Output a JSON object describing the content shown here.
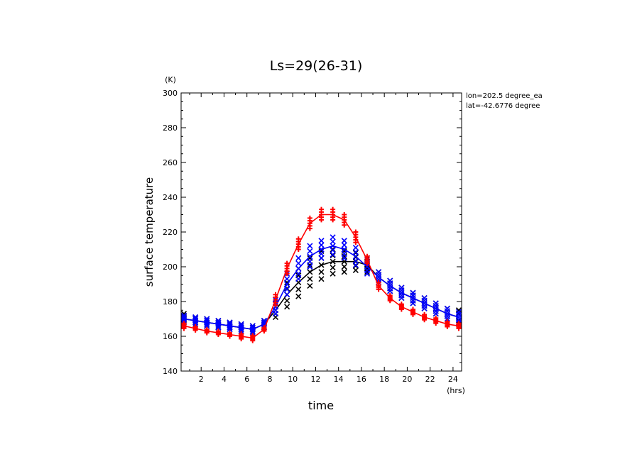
{
  "chart_data": {
    "type": "line",
    "title": "Ls=29(26-31)",
    "xlabel": "time",
    "ylabel": "surface temperature",
    "x_unit": "(hrs)",
    "y_unit": "(K)",
    "annotations": [
      "lon=202.5 degree_ea",
      "lat=-42.6776 degree"
    ],
    "xlim": [
      0.25,
      24.75
    ],
    "ylim": [
      140,
      300
    ],
    "x_ticks": [
      2,
      4,
      6,
      8,
      10,
      12,
      14,
      16,
      18,
      20,
      22,
      24
    ],
    "y_ticks": [
      140,
      160,
      180,
      200,
      220,
      240,
      260,
      280,
      300
    ],
    "x": [
      0.5,
      1.5,
      2.5,
      3.5,
      4.5,
      5.5,
      6.5,
      7.5,
      8.5,
      9.5,
      10.5,
      11.5,
      12.5,
      13.5,
      14.5,
      15.5,
      16.5,
      17.5,
      18.5,
      19.5,
      20.5,
      21.5,
      22.5,
      23.5,
      24.5
    ],
    "series": [
      {
        "color": "#ff0000",
        "marker": "plus",
        "values": [
          166,
          164.5,
          163,
          162,
          161,
          160,
          159,
          164,
          181,
          199,
          213,
          225,
          230,
          230,
          227,
          217,
          204,
          189,
          182,
          177,
          174,
          171,
          169,
          167,
          166
        ],
        "scatter_spread": [
          1.5,
          1,
          1,
          1,
          1,
          1.5,
          1.5,
          1,
          3,
          3,
          3,
          3,
          3,
          3,
          3,
          3,
          2,
          2,
          1.5,
          1.5,
          1.5,
          1.5,
          1.5,
          1.5,
          1.5
        ]
      },
      {
        "color": "#0000ff",
        "marker": "cross",
        "values": [
          170,
          169,
          168,
          167,
          166,
          165,
          164,
          167,
          177,
          190,
          199,
          206,
          210,
          212,
          210,
          206,
          200,
          194,
          189,
          185,
          182,
          179,
          176,
          173,
          171
        ],
        "scatter_spread": [
          2,
          2,
          2,
          2,
          2,
          2,
          2,
          2,
          4,
          6,
          6,
          6,
          5,
          5,
          5,
          5,
          4,
          3,
          3,
          3,
          3,
          3,
          3,
          3,
          3
        ]
      },
      {
        "color": "#000000",
        "marker": "cross",
        "values": [
          170,
          169,
          168,
          167,
          166,
          165,
          164,
          167,
          175,
          184,
          191,
          197,
          201,
          203,
          203,
          203,
          201,
          194,
          189,
          185,
          182,
          179,
          176,
          173,
          171
        ],
        "scatter_spread": [
          3,
          2,
          2,
          2,
          2,
          2,
          2,
          2,
          4,
          7,
          8,
          8,
          8,
          7,
          6,
          5,
          4,
          3,
          3,
          3,
          3,
          3,
          3,
          3,
          4
        ]
      }
    ]
  }
}
